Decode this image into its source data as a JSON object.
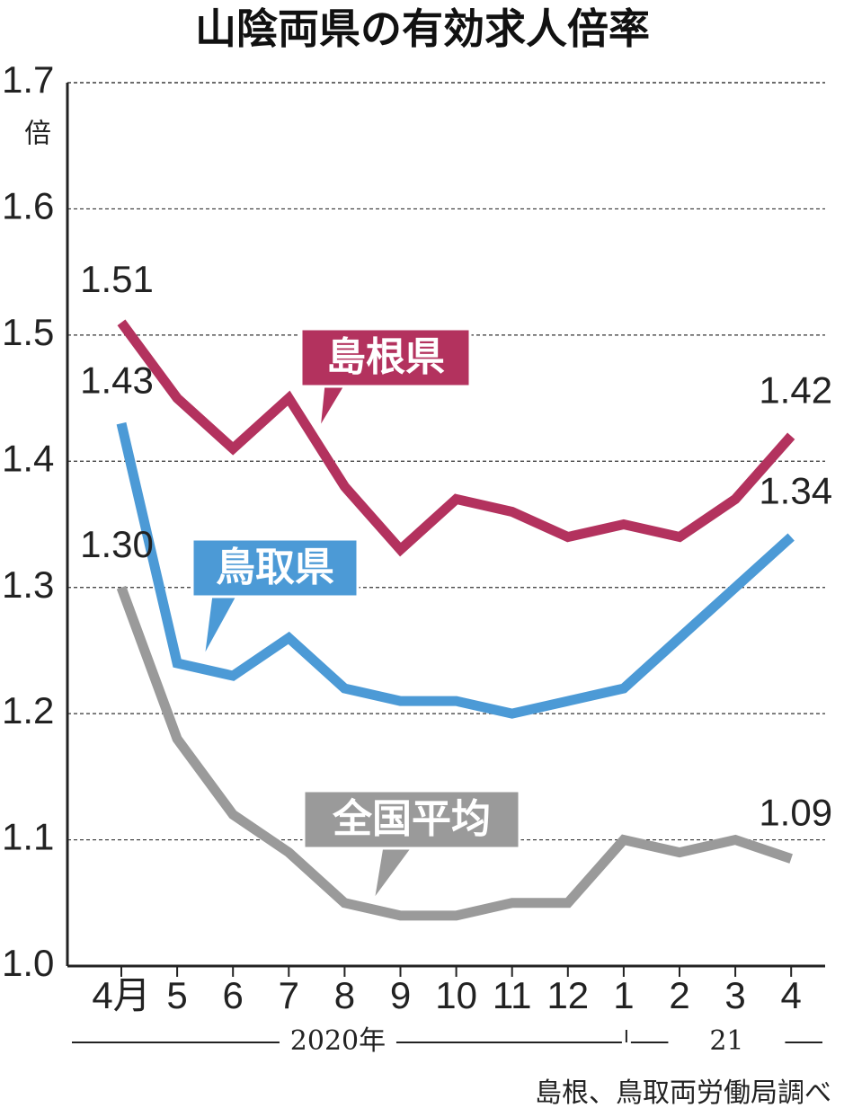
{
  "chart_data": {
    "type": "line",
    "title": "山陰両県の有効求人倍率",
    "y_label": "倍",
    "categories": [
      "4月",
      "5",
      "6",
      "7",
      "8",
      "9",
      "10",
      "11",
      "12",
      "1",
      "2",
      "3",
      "4"
    ],
    "category_groups": [
      {
        "label": "2020年",
        "start": 0,
        "end": 8
      },
      {
        "label": "21",
        "start": 9,
        "end": 12
      }
    ],
    "series": [
      {
        "name": "島根県",
        "color": "#b3325e",
        "values": [
          1.51,
          1.45,
          1.41,
          1.45,
          1.38,
          1.33,
          1.37,
          1.36,
          1.34,
          1.35,
          1.34,
          1.37,
          1.42
        ],
        "value_labels": [
          "1.51",
          null,
          null,
          null,
          null,
          null,
          null,
          null,
          null,
          null,
          null,
          null,
          "1.42"
        ]
      },
      {
        "name": "鳥取県",
        "color": "#4c9ad6",
        "values": [
          1.43,
          1.24,
          1.23,
          1.26,
          1.22,
          1.21,
          1.21,
          1.2,
          1.21,
          1.22,
          1.26,
          1.3,
          1.34
        ],
        "value_labels": [
          "1.43",
          null,
          null,
          null,
          null,
          null,
          null,
          null,
          null,
          null,
          null,
          null,
          "1.34"
        ]
      },
      {
        "name": "全国平均",
        "color": "#9a9a9a",
        "values": [
          1.3,
          1.18,
          1.12,
          1.09,
          1.05,
          1.04,
          1.04,
          1.05,
          1.05,
          1.1,
          1.09,
          1.1,
          1.085
        ],
        "value_labels": [
          "1.30",
          null,
          null,
          null,
          null,
          null,
          null,
          null,
          null,
          null,
          null,
          null,
          "1.09"
        ]
      }
    ],
    "ylim": [
      1.0,
      1.7
    ],
    "yticks": [
      {
        "value": 1.0,
        "label": "1.0"
      },
      1.1,
      1.2,
      1.3,
      1.4,
      1.5,
      1.6,
      1.7
    ],
    "grid": true,
    "source": "島根、鳥取両労働局調べ"
  }
}
